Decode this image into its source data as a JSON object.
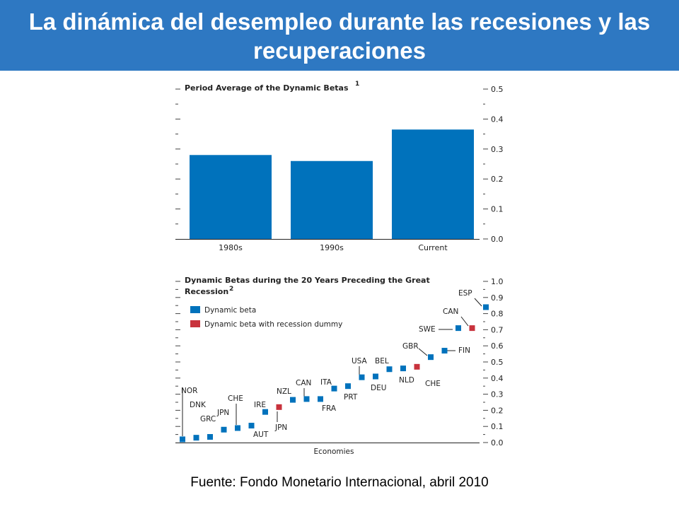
{
  "slide": {
    "title": "La dinámica del desempleo durante las recesiones y las recuperaciones",
    "source": "Fuente: Fondo Monetario Internacional, abril 2010"
  },
  "colors": {
    "header": "#2e78c2",
    "blue": "#0072bc",
    "red": "#c8323c"
  },
  "chart_data": [
    {
      "type": "bar",
      "title": "Period Average of the Dynamic Betas",
      "title_note": "1",
      "categories": [
        "1980s",
        "1990s",
        "Current"
      ],
      "values": [
        0.28,
        0.26,
        0.365
      ],
      "ylim": [
        0,
        0.5
      ],
      "yticks": [
        "0.0",
        "0.1",
        "0.2",
        "0.3",
        "0.4",
        "0.5"
      ],
      "legend": "none"
    },
    {
      "type": "scatter",
      "title_line1": "Dynamic Betas during the 20 Years Preceding the Great",
      "title_line2": "Recession",
      "title_note": "2",
      "xlabel": "Economies",
      "ylim": [
        0,
        1.0
      ],
      "yticks": [
        "0.0",
        "0.1",
        "0.2",
        "0.3",
        "0.4",
        "0.5",
        "0.6",
        "0.7",
        "0.8",
        "0.9",
        "1.0"
      ],
      "legend_position": "top-left",
      "series": [
        {
          "name": "Dynamic beta",
          "color": "#0072bc"
        },
        {
          "name": "Dynamic beta with recession dummy",
          "color": "#c8323c"
        }
      ],
      "points": [
        {
          "label": "NOR",
          "value": 0.02,
          "series": 0
        },
        {
          "label": "DNK",
          "value": 0.03,
          "series": 0
        },
        {
          "label": "GRC",
          "value": 0.035,
          "series": 0
        },
        {
          "label": "JPN",
          "value": 0.08,
          "series": 0
        },
        {
          "label": "CHE",
          "value": 0.09,
          "series": 0
        },
        {
          "label": "AUT",
          "value": 0.105,
          "series": 0
        },
        {
          "label": "IRE",
          "value": 0.19,
          "series": 0
        },
        {
          "label": "JPN",
          "value": 0.22,
          "series": 1
        },
        {
          "label": "NZL",
          "value": 0.265,
          "series": 0
        },
        {
          "label": "CAN",
          "value": 0.27,
          "series": 0
        },
        {
          "label": "FRA",
          "value": 0.27,
          "series": 0
        },
        {
          "label": "ITA",
          "value": 0.335,
          "series": 0
        },
        {
          "label": "PRT",
          "value": 0.35,
          "series": 0
        },
        {
          "label": "USA",
          "value": 0.405,
          "series": 0
        },
        {
          "label": "DEU",
          "value": 0.41,
          "series": 0
        },
        {
          "label": "BEL",
          "value": 0.455,
          "series": 0
        },
        {
          "label": "NLD",
          "value": 0.46,
          "series": 0
        },
        {
          "label": "CHE",
          "value": 0.47,
          "series": 1
        },
        {
          "label": "GBR",
          "value": 0.53,
          "series": 0
        },
        {
          "label": "FIN",
          "value": 0.57,
          "series": 0
        },
        {
          "label": "SWE",
          "value": 0.71,
          "series": 0
        },
        {
          "label": "CAN",
          "value": 0.71,
          "series": 1
        },
        {
          "label": "ESP",
          "value": 0.84,
          "series": 0
        }
      ]
    }
  ]
}
